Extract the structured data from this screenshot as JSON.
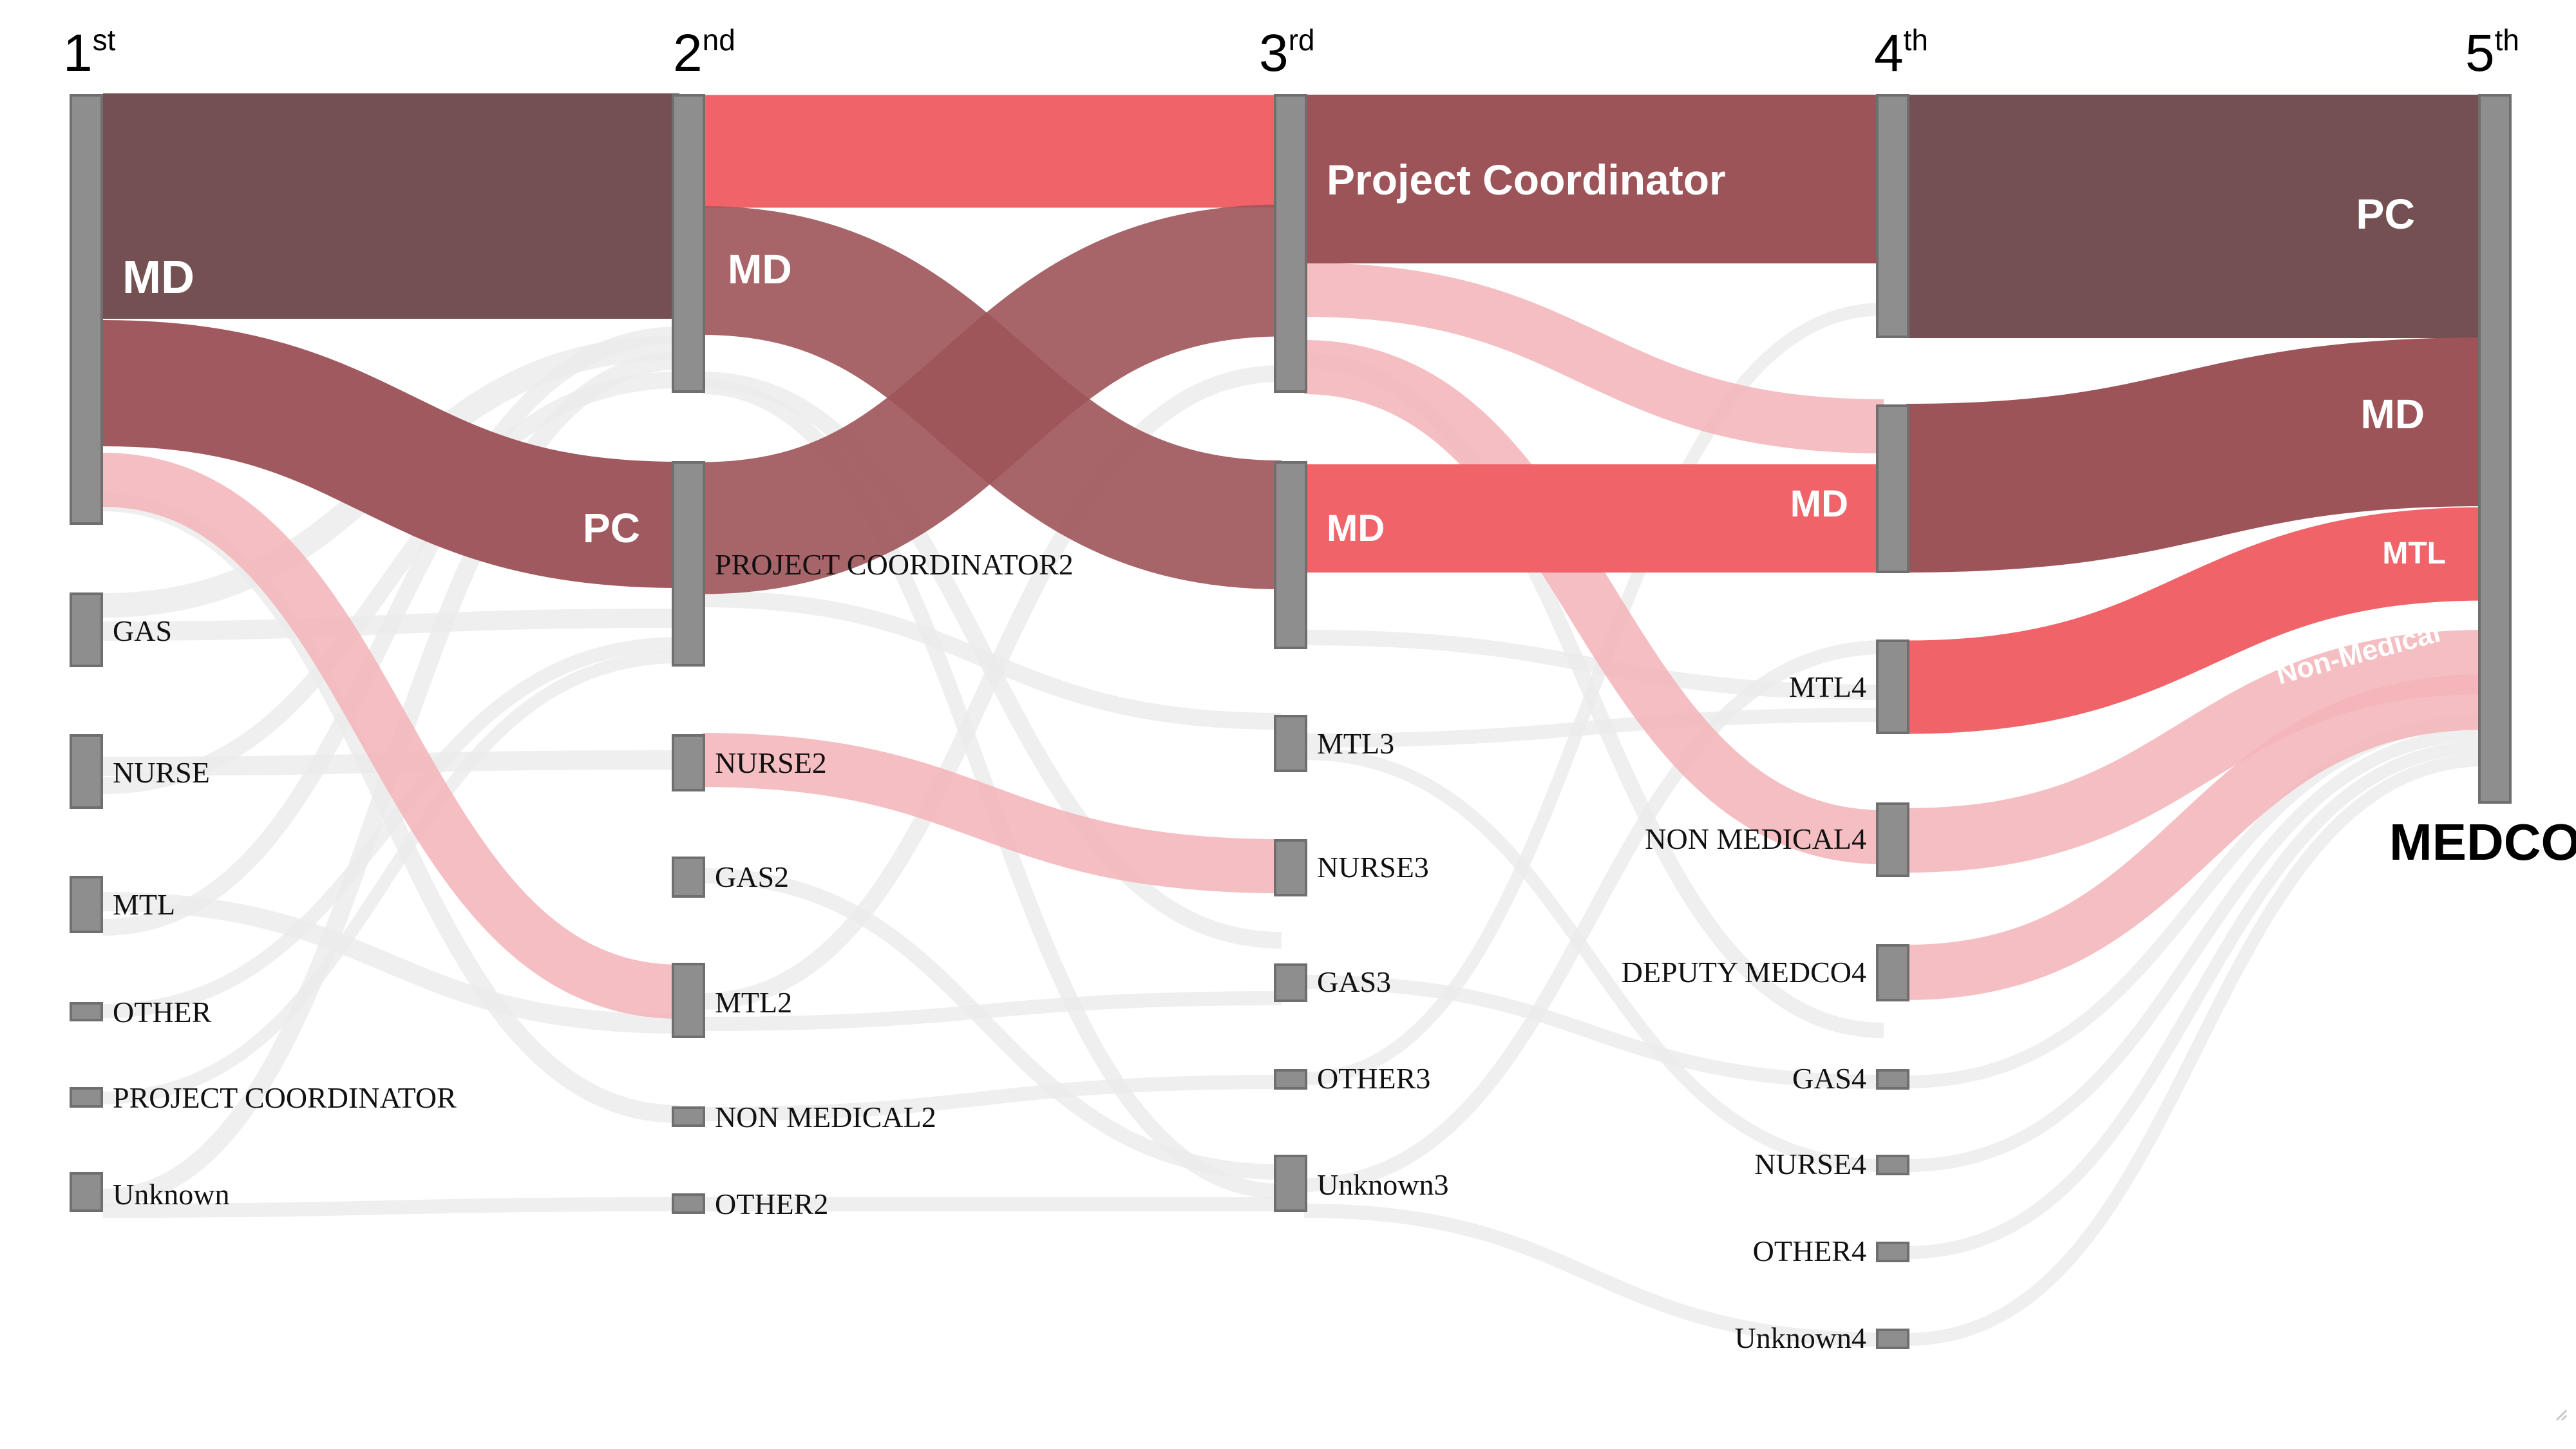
{
  "columns": {
    "c1": {
      "num": "1",
      "sup": "st"
    },
    "c2": {
      "num": "2",
      "sup": "nd"
    },
    "c3": {
      "num": "3",
      "sup": "rd"
    },
    "c4": {
      "num": "4",
      "sup": "th"
    },
    "c5": {
      "num": "5",
      "sup": "th"
    }
  },
  "nodes": {
    "n1": {
      "md": "",
      "gas": "GAS",
      "nurse": "NURSE",
      "mtl": "MTL",
      "other": "OTHER",
      "project_coordinator": "PROJECT COORDINATOR",
      "unknown": "Unknown"
    },
    "n2": {
      "md": "",
      "project_coordinator": "PROJECT COORDINATOR2",
      "nurse": "NURSE2",
      "gas": "GAS2",
      "mtl": "MTL2",
      "non_medical": "NON MEDICAL2",
      "other": "OTHER2"
    },
    "n3": {
      "pc": "",
      "md": "",
      "mtl": "MTL3",
      "nurse": "NURSE3",
      "gas": "GAS3",
      "other": "OTHER3",
      "unknown": "Unknown3"
    },
    "n4": {
      "pc": "",
      "md": "",
      "mtl": "MTL4",
      "non_medical": "NON MEDICAL4",
      "deputy_medco": "DEPUTY MEDCO4",
      "gas": "GAS4",
      "nurse": "NURSE4",
      "other": "OTHER4",
      "unknown": "Unknown4"
    },
    "n5": {
      "medco": "MEDCO"
    }
  },
  "flow_labels": {
    "md_1_2": "MD",
    "pc_1_2": "PC",
    "md_2_3": "MD",
    "pc_3_4": "Project Coordinator",
    "md_3_4": "MD",
    "md_3_4_end": "MD",
    "pc_4_5": "PC",
    "md_4_5": "MD",
    "mtl_4_5": "MTL",
    "nonmed_4_5": "Non-Medical"
  },
  "colors": {
    "darkest": "#745052",
    "dark": "#9d5459",
    "red": "#ef6369",
    "pink": "#f6bcbf",
    "faint": "#ededed",
    "crossing": "#8b2a30",
    "node": "#8e8e8e"
  }
}
